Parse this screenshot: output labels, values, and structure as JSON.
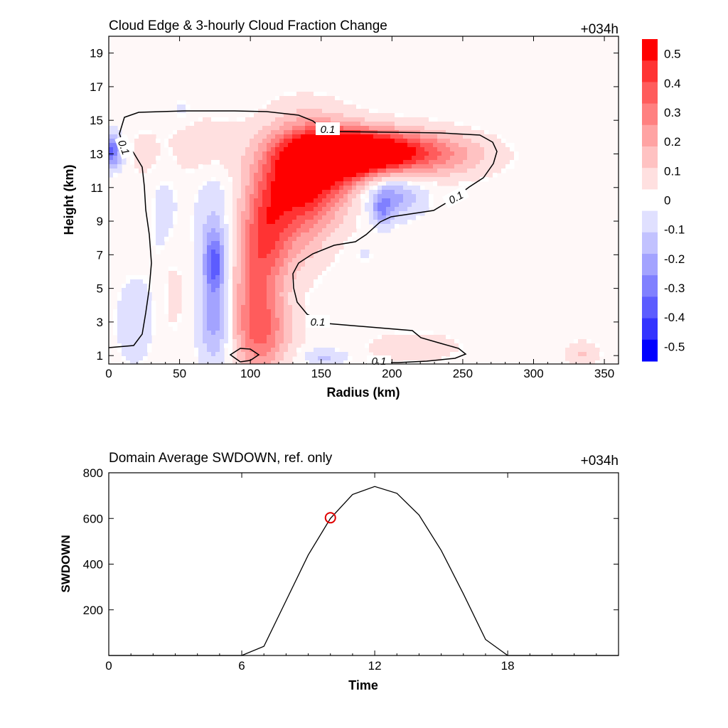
{
  "chart_data": [
    {
      "type": "heatmap",
      "title": "Cloud Edge & 3-hourly Cloud Fraction Change",
      "time_tag": "+034h",
      "xlabel": "Radius (km)",
      "ylabel": "Height (km)",
      "xlim": [
        0,
        360
      ],
      "ylim": [
        0.5,
        20
      ],
      "x_ticks": [
        "0",
        "50",
        "100",
        "150",
        "200",
        "250",
        "300",
        "350"
      ],
      "y_ticks": [
        "1",
        "3",
        "5",
        "7",
        "9",
        "11",
        "13",
        "15",
        "17",
        "19"
      ],
      "colorbar": {
        "range": [
          -0.55,
          0.55
        ],
        "labels": [
          "0.5",
          "0.4",
          "0.3",
          "0.2",
          "0.1",
          "0",
          "-0.1",
          "-0.2",
          "-0.3",
          "-0.4",
          "-0.5"
        ],
        "colors": [
          "#ff0000",
          "#ff3333",
          "#ff5c5c",
          "#ff8080",
          "#ffa3a3",
          "#ffc2c2",
          "#ffe0e0",
          "#ffffff",
          "#e0e0ff",
          "#c2c2ff",
          "#a3a3ff",
          "#8080ff",
          "#5c5cff",
          "#3333ff",
          "#0000ff"
        ]
      },
      "contour_label": "0.1",
      "features": [
        {
          "x": 170,
          "y": 13,
          "sx": 26,
          "sy": 0.9,
          "v": 0.55
        },
        {
          "x": 148,
          "y": 12.2,
          "sx": 22,
          "sy": 1.8,
          "v": 0.42
        },
        {
          "x": 132,
          "y": 10.5,
          "sx": 18,
          "sy": 2.6,
          "v": 0.3
        },
        {
          "x": 112,
          "y": 8.5,
          "sx": 12,
          "sy": 2.5,
          "v": 0.25
        },
        {
          "x": 102,
          "y": 5,
          "sx": 12,
          "sy": 3.2,
          "v": 0.22
        },
        {
          "x": 110,
          "y": 2.3,
          "sx": 14,
          "sy": 1.6,
          "v": 0.23
        },
        {
          "x": 200,
          "y": 13.2,
          "sx": 32,
          "sy": 0.9,
          "v": 0.3
        },
        {
          "x": 232,
          "y": 12.8,
          "sx": 30,
          "sy": 0.9,
          "v": 0.14
        },
        {
          "x": 65,
          "y": 13.5,
          "sx": 20,
          "sy": 1.2,
          "v": 0.1
        },
        {
          "x": 45,
          "y": 5,
          "sx": 6,
          "sy": 2,
          "v": 0.08
        },
        {
          "x": 25,
          "y": 13,
          "sx": 6,
          "sy": 0.8,
          "v": 0.1
        },
        {
          "x": 335,
          "y": 1.1,
          "sx": 8,
          "sy": 0.5,
          "v": 0.12
        },
        {
          "x": 215,
          "y": 1.5,
          "sx": 22,
          "sy": 0.6,
          "v": 0.1
        },
        {
          "x": 200,
          "y": 10.5,
          "sx": 15,
          "sy": 0.9,
          "v": -0.22
        },
        {
          "x": 193,
          "y": 9.6,
          "sx": 5,
          "sy": 0.7,
          "v": -0.18
        },
        {
          "x": 75,
          "y": 6.5,
          "sx": 5,
          "sy": 1.2,
          "v": -0.3
        },
        {
          "x": 75,
          "y": 3,
          "sx": 8,
          "sy": 1.8,
          "v": -0.22
        },
        {
          "x": 74,
          "y": 8.5,
          "sx": 9,
          "sy": 2.5,
          "v": -0.12
        },
        {
          "x": 2,
          "y": 13.2,
          "sx": 5,
          "sy": 0.7,
          "v": -0.35
        },
        {
          "x": 18,
          "y": 3,
          "sx": 10,
          "sy": 2,
          "v": -0.08
        },
        {
          "x": 40,
          "y": 9,
          "sx": 8,
          "sy": 3,
          "v": -0.06
        },
        {
          "x": 52,
          "y": 15.5,
          "sx": 6,
          "sy": 0.7,
          "v": -0.06
        },
        {
          "x": 152,
          "y": 0.9,
          "sx": 12,
          "sy": 0.35,
          "v": -0.12
        },
        {
          "x": 180,
          "y": 7,
          "sx": 6,
          "sy": 0.4,
          "v": -0.05
        }
      ]
    },
    {
      "type": "line",
      "title": "Domain Average SWDOWN, ref. only",
      "time_tag": "+034h",
      "xlabel": "Time",
      "ylabel": "SWDOWN",
      "xlim": [
        0,
        23
      ],
      "ylim": [
        0,
        800
      ],
      "x_ticks": [
        "0",
        "6",
        "12",
        "18"
      ],
      "y_ticks": [
        "200",
        "400",
        "600",
        "800"
      ],
      "x": [
        0,
        1,
        2,
        3,
        4,
        5,
        6,
        7,
        8,
        9,
        10,
        11,
        12,
        13,
        14,
        15,
        16,
        17,
        18,
        19,
        20,
        21,
        22,
        23
      ],
      "values": [
        0,
        0,
        0,
        0,
        0,
        0,
        0,
        40,
        240,
        440,
        600,
        705,
        740,
        710,
        615,
        460,
        270,
        70,
        0,
        0,
        0,
        0,
        0,
        0
      ],
      "marker": {
        "x": 10,
        "y": 603
      }
    }
  ]
}
